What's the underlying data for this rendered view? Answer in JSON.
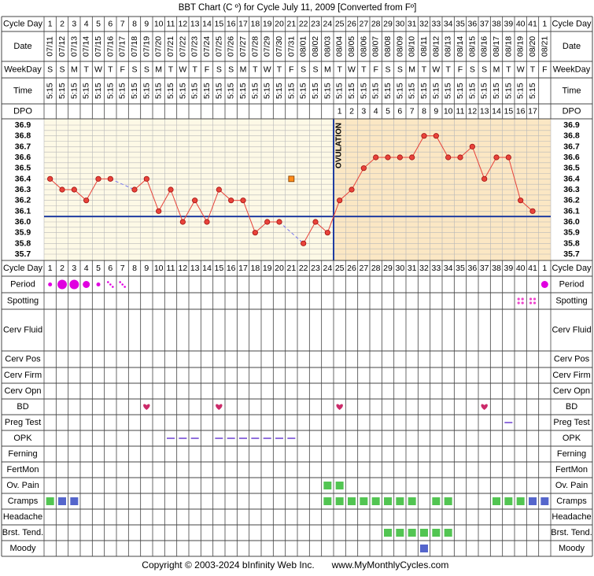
{
  "title": "BBT Chart (C º) for Cycle July 11, 2009  [Converted from Fº]",
  "footer": {
    "copyright": "Copyright © 2003-2024 bInfinity Web Inc.",
    "site": "www.MyMonthlyCycles.com"
  },
  "colors": {
    "pre_bg": "#fdf9e6",
    "post_bg": "#fbe7c4",
    "bbt_line": "#e8433a",
    "coverline": "#1f3ca0",
    "period": "#e000e0",
    "green_marker": "#52c552",
    "blue_marker": "#5566cc",
    "opk_dash": "#6a3fd0",
    "heart": "#cc2b6a",
    "grid": "#b8b8b8"
  },
  "labels": {
    "cycle_day": "Cycle Day",
    "date": "Date",
    "weekday": "WeekDay",
    "time": "Time",
    "dpo": "DPO",
    "period": "Period",
    "spotting": "Spotting",
    "cerv_fluid": "Cerv Fluid",
    "cerv_pos": "Cerv Pos",
    "cerv_firm": "Cerv Firm",
    "cerv_opn": "Cerv Opn",
    "bd": "BD",
    "preg_test": "Preg Test",
    "opk": "OPK",
    "ferning": "Ferning",
    "fertmon": "FertMon",
    "ov_pain": "Ov. Pain",
    "cramps": "Cramps",
    "headache": "Headache",
    "brst_tend": "Brst. Tend.",
    "moody": "Moody",
    "ovulation": "OVULATION"
  },
  "cycle_days": [
    "1",
    "2",
    "3",
    "4",
    "5",
    "6",
    "7",
    "8",
    "9",
    "10",
    "11",
    "12",
    "13",
    "14",
    "15",
    "16",
    "17",
    "18",
    "19",
    "20",
    "21",
    "22",
    "23",
    "24",
    "25",
    "26",
    "27",
    "28",
    "29",
    "30",
    "31",
    "32",
    "33",
    "34",
    "35",
    "36",
    "37",
    "38",
    "39",
    "40",
    "41",
    "1"
  ],
  "dates": [
    "07/11",
    "07/12",
    "07/13",
    "07/14",
    "07/15",
    "07/16",
    "07/17",
    "07/18",
    "07/19",
    "07/20",
    "07/21",
    "07/22",
    "07/23",
    "07/24",
    "07/25",
    "07/26",
    "07/27",
    "07/28",
    "07/29",
    "07/30",
    "07/31",
    "08/01",
    "08/02",
    "08/03",
    "08/04",
    "08/05",
    "08/06",
    "08/07",
    "08/08",
    "08/09",
    "08/10",
    "08/11",
    "08/12",
    "08/13",
    "08/14",
    "08/15",
    "08/16",
    "08/17",
    "08/18",
    "08/19",
    "08/20",
    "08/21"
  ],
  "weekdays": [
    "S",
    "S",
    "M",
    "T",
    "W",
    "T",
    "F",
    "S",
    "S",
    "M",
    "T",
    "W",
    "T",
    "F",
    "S",
    "S",
    "M",
    "T",
    "W",
    "T",
    "F",
    "S",
    "S",
    "M",
    "T",
    "W",
    "T",
    "F",
    "S",
    "S",
    "M",
    "T",
    "W",
    "T",
    "F",
    "S",
    "S",
    "M",
    "T",
    "W",
    "T",
    "F"
  ],
  "times": [
    "5:15",
    "5:15",
    "5:15",
    "5:15",
    "5:15",
    "5:15",
    "5:15",
    "5:15",
    "5:15",
    "5:15",
    "5:15",
    "5:15",
    "5:15",
    "5:15",
    "5:15",
    "5:15",
    "5:15",
    "5:15",
    "5:15",
    "5:15",
    "5:15",
    "5:15",
    "5:15",
    "5:15",
    "5:15",
    "5:15",
    "5:15",
    "5:15",
    "5:15",
    "5:15",
    "5:15",
    "5:15",
    "5:15",
    "5:15",
    "5:15",
    "5:15",
    "5:15",
    "5:15",
    "5:15",
    "5:15",
    "5:15",
    ""
  ],
  "dpo": [
    "",
    "",
    "",
    "",
    "",
    "",
    "",
    "",
    "",
    "",
    "",
    "",
    "",
    "",
    "",
    "",
    "",
    "",
    "",
    "",
    "",
    "",
    "",
    "",
    "1",
    "2",
    "3",
    "4",
    "5",
    "6",
    "7",
    "8",
    "9",
    "10",
    "11",
    "12",
    "13",
    "14",
    "15",
    "16",
    "17",
    ""
  ],
  "chart_data": {
    "type": "line",
    "x": [
      1,
      2,
      3,
      4,
      5,
      6,
      7,
      8,
      9,
      10,
      11,
      12,
      13,
      14,
      15,
      16,
      17,
      18,
      19,
      20,
      21,
      22,
      23,
      24,
      25,
      26,
      27,
      28,
      29,
      30,
      31,
      32,
      33,
      34,
      35,
      36,
      37,
      38,
      39,
      40,
      41
    ],
    "temps": [
      36.4,
      36.3,
      36.3,
      36.2,
      36.4,
      36.4,
      null,
      36.3,
      36.4,
      36.1,
      36.3,
      36.0,
      36.2,
      36.0,
      36.3,
      36.2,
      36.2,
      35.9,
      36.0,
      36.0,
      null,
      35.8,
      36.0,
      35.9,
      36.2,
      36.3,
      36.5,
      36.6,
      36.6,
      36.6,
      36.6,
      36.8,
      36.8,
      36.6,
      36.6,
      36.7,
      36.4,
      36.6,
      36.6,
      36.2,
      36.1
    ],
    "excluded_point": {
      "day": 21,
      "temp": 36.4
    },
    "yticks": [
      "36.9",
      "36.8",
      "36.7",
      "36.6",
      "36.5",
      "36.4",
      "36.3",
      "36.2",
      "36.1",
      "36.0",
      "35.9",
      "35.8",
      "35.7"
    ],
    "ylim": [
      35.7,
      36.9
    ],
    "coverline": 36.05,
    "ovulation_day": 24
  },
  "rows": {
    "period": [
      {
        "day": 1,
        "size": "small"
      },
      {
        "day": 2,
        "size": "large"
      },
      {
        "day": 3,
        "size": "large"
      },
      {
        "day": 4,
        "size": "medium"
      },
      {
        "day": 5,
        "size": "small"
      },
      {
        "day": 6,
        "size": "spot"
      },
      {
        "day": 7,
        "size": "spot"
      },
      {
        "day": 42,
        "size": "medium"
      }
    ],
    "spotting": [
      40,
      41
    ],
    "bd": [
      9,
      15,
      25,
      37
    ],
    "preg_test": [
      39
    ],
    "opk": [
      11,
      12,
      13,
      15,
      16,
      17,
      18,
      19,
      20,
      21
    ],
    "ov_pain": {
      "green": [
        24,
        25
      ]
    },
    "cramps": {
      "green": [
        1,
        24,
        25,
        26,
        27,
        28,
        29,
        30,
        31,
        33,
        34,
        38,
        39,
        40
      ],
      "blue": [
        2,
        3,
        41,
        42
      ]
    },
    "brst_tend": {
      "green": [
        29,
        30,
        31,
        32,
        33,
        34
      ]
    },
    "moody": {
      "blue": [
        32
      ]
    }
  }
}
